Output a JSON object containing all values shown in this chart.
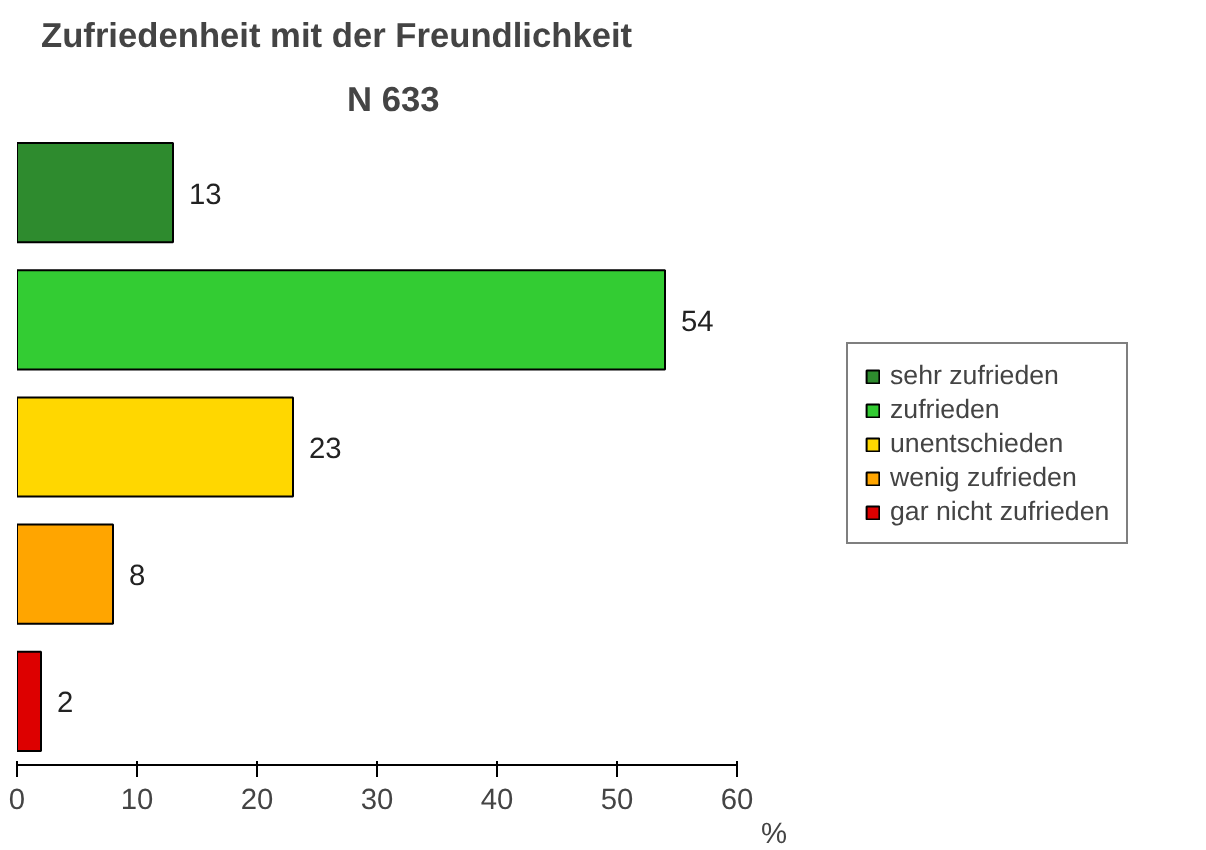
{
  "chart_data": {
    "type": "bar",
    "orientation": "horizontal",
    "stacked": true,
    "title": "Zufriedenheit mit der Freundlichkeit",
    "subtitle": "N 633",
    "xlabel": "%",
    "categories": [
      null,
      null,
      null,
      null,
      null
    ],
    "series": [
      {
        "name": "sehr zufrieden",
        "color": "#2e8b2e",
        "values": [
          13,
          null,
          null,
          null,
          null
        ]
      },
      {
        "name": "zufrieden",
        "color": "#33cc33",
        "values": [
          null,
          54,
          null,
          null,
          null
        ]
      },
      {
        "name": "unentschieden",
        "color": "#ffd700",
        "values": [
          null,
          null,
          23,
          null,
          null
        ]
      },
      {
        "name": "wenig zufrieden",
        "color": "#ffa500",
        "values": [
          null,
          null,
          null,
          8,
          null
        ]
      },
      {
        "name": "gar nicht zufrieden",
        "color": "#dd0000",
        "values": [
          null,
          null,
          null,
          null,
          2
        ]
      }
    ],
    "xlim": [
      0,
      60
    ],
    "xticks": [
      0,
      10,
      20,
      30,
      40,
      50,
      60
    ],
    "data_labels": true,
    "legend": "right",
    "tick_labels": "x"
  }
}
